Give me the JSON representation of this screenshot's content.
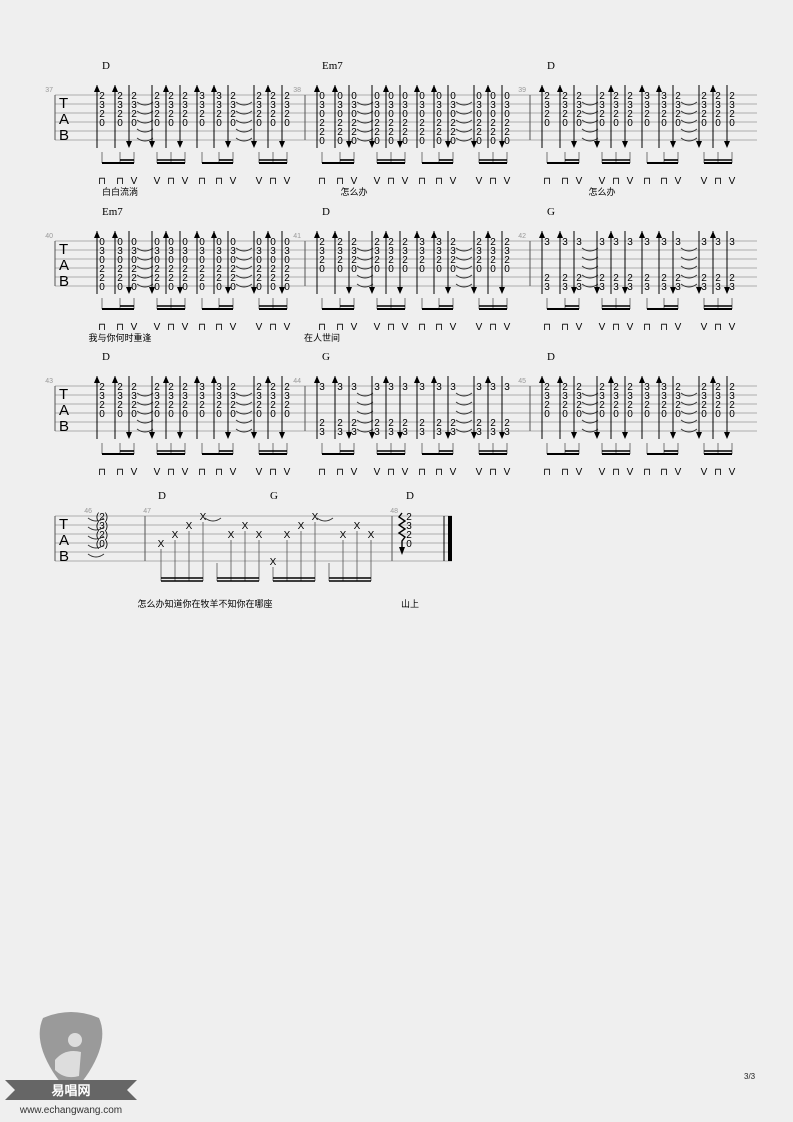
{
  "page_number": "3/3",
  "logo": {
    "name": "易唱网",
    "url": "www.echangwang.com"
  },
  "clef": [
    "T",
    "A",
    "B"
  ],
  "shapes": {
    "D": [
      2,
      3,
      2,
      0,
      null,
      null
    ],
    "Dsus": [
      3,
      3,
      2,
      0,
      null,
      null
    ],
    "Em7": [
      0,
      3,
      0,
      2,
      2,
      0
    ],
    "G": [
      3,
      null,
      null,
      null,
      2,
      3
    ]
  },
  "strums": [
    "⊓",
    "⊓",
    "V",
    "V",
    "⊓",
    "V",
    "⊓",
    "⊓",
    "V",
    "V",
    "⊓",
    "V"
  ],
  "strokes": [
    "up",
    "up",
    "down",
    "down",
    "up",
    "down",
    "up",
    "up",
    "down",
    "down",
    "up",
    "down"
  ],
  "rows": [
    {
      "measures": [
        {
          "number": "37",
          "chord": "D",
          "columns": [
            "D",
            "D",
            "D",
            "D",
            "D",
            "D",
            "Dsus",
            "Dsus",
            "D",
            "D",
            "D",
            "D"
          ],
          "lyric": "白白流淌",
          "lyric_col": 1
        },
        {
          "number": "38",
          "chord": "Em7",
          "columns": [
            "Em7",
            "Em7",
            "Em7",
            "Em7",
            "Em7",
            "Em7",
            "Em7",
            "Em7",
            "Em7",
            "Em7",
            "Em7",
            "Em7"
          ],
          "lyric": "怎么办",
          "lyric_col": 2
        },
        {
          "number": "39",
          "chord": "D",
          "columns": [
            "D",
            "D",
            "D",
            "D",
            "D",
            "D",
            "Dsus",
            "Dsus",
            "D",
            "D",
            "D",
            "D"
          ],
          "lyric": "怎么办",
          "lyric_col": 3
        }
      ]
    },
    {
      "measures": [
        {
          "number": "40",
          "chord": "Em7",
          "columns": [
            "Em7",
            "Em7",
            "Em7",
            "Em7",
            "Em7",
            "Em7",
            "Em7",
            "Em7",
            "Em7",
            "Em7",
            "Em7",
            "Em7"
          ],
          "lyric": "我与你何时重逢",
          "lyric_col": 1
        },
        {
          "number": "41",
          "chord": "D",
          "columns": [
            "D",
            "D",
            "D",
            "D",
            "D",
            "D",
            "Dsus",
            "Dsus",
            "D",
            "D",
            "D",
            "D"
          ],
          "lyric": "在人世间",
          "lyric_col": 0
        },
        {
          "number": "42",
          "chord": "G",
          "columns": [
            "G",
            "G",
            "G",
            "G",
            "G",
            "G",
            "G",
            "G",
            "G",
            "G",
            "G",
            "G"
          ],
          "lyric": "",
          "lyric_col": 0
        }
      ]
    },
    {
      "measures": [
        {
          "number": "43",
          "chord": "D",
          "columns": [
            "D",
            "D",
            "D",
            "D",
            "D",
            "D",
            "Dsus",
            "Dsus",
            "D",
            "D",
            "D",
            "D"
          ],
          "lyric": "",
          "lyric_col": 0
        },
        {
          "number": "44",
          "chord": "G",
          "columns": [
            "G",
            "G",
            "G",
            "G",
            "G",
            "G",
            "G",
            "G",
            "G",
            "G",
            "G",
            "G"
          ],
          "lyric": "",
          "lyric_col": 0
        },
        {
          "number": "45",
          "chord": "D",
          "columns": [
            "D",
            "D",
            "D",
            "D",
            "D",
            "D",
            "Dsus",
            "Dsus",
            "D",
            "D",
            "D",
            "D"
          ],
          "lyric": "",
          "lyric_col": 0
        }
      ]
    }
  ],
  "last_row": {
    "m46": {
      "number": "46",
      "frets": [
        "(2)",
        "(3)",
        "(2)",
        "(0)"
      ]
    },
    "m47": {
      "number": "47",
      "chords": [
        "D",
        "G"
      ],
      "harmonic_strings": [
        4,
        3,
        2,
        1,
        null,
        3,
        2,
        3,
        6,
        3,
        2,
        1,
        null,
        3,
        2,
        3
      ],
      "note_glyph": "X",
      "lyric": "怎么办知道你在牧羊不知你在哪座"
    },
    "m48": {
      "number": "48",
      "chord": "D",
      "frets": [
        "2",
        "3",
        "2",
        "0"
      ],
      "lyric": "山上"
    }
  }
}
